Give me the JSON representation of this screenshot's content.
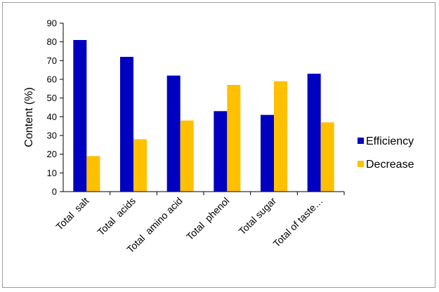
{
  "chart_data": {
    "type": "bar",
    "title": "",
    "xlabel": "",
    "ylabel": "Content (%)",
    "ylim": [
      0,
      90
    ],
    "ytick_step": 10,
    "grid": false,
    "legend_position": "right",
    "categories": [
      "Total  salt",
      "Total  acids",
      "Total  amino acid",
      "Total  phenol",
      "Total sugar",
      "Total of taste…"
    ],
    "series": [
      {
        "name": "Efficiency",
        "color": "#0000c0",
        "values": [
          81,
          72,
          62,
          43,
          41,
          63
        ]
      },
      {
        "name": "Decrease",
        "color": "#ffc000",
        "values": [
          19,
          28,
          38,
          57,
          59,
          37
        ]
      }
    ]
  }
}
